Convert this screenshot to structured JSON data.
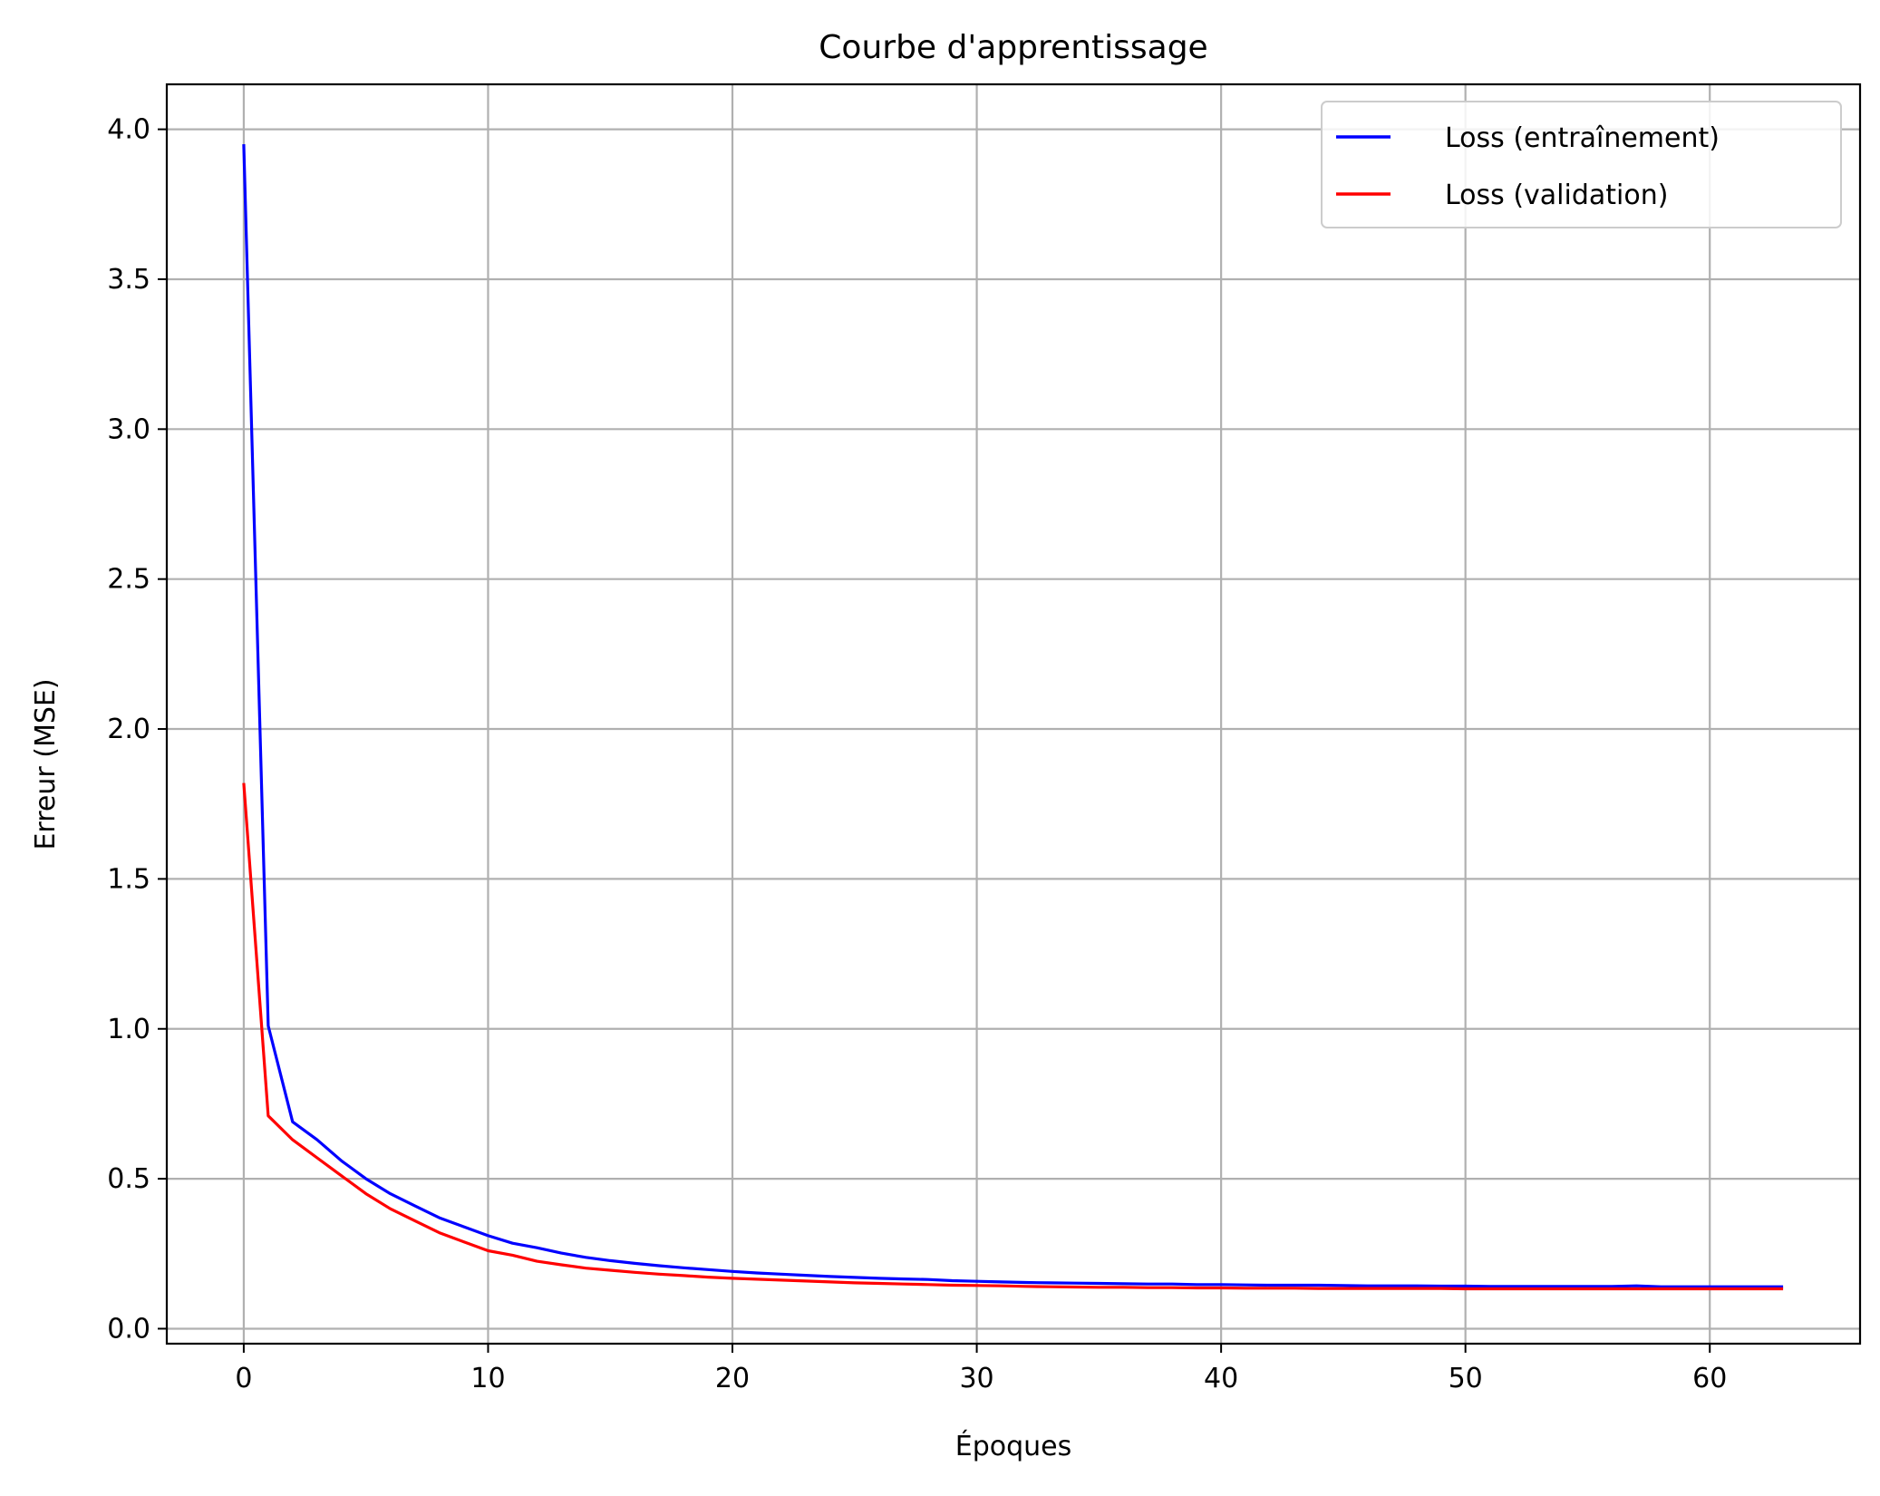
{
  "chart_data": {
    "type": "line",
    "title": "Courbe d'apprentissage",
    "xlabel": "Époques",
    "ylabel": "Erreur (MSE)",
    "xlim": [
      -3.15,
      66.15
    ],
    "ylim": [
      -0.05,
      4.15
    ],
    "grid": true,
    "legend_position": "top-right",
    "x_ticks": [
      0,
      10,
      20,
      30,
      40,
      50,
      60
    ],
    "x_tick_labels": [
      "0",
      "10",
      "20",
      "30",
      "40",
      "50",
      "60"
    ],
    "y_ticks": [
      0.0,
      0.5,
      1.0,
      1.5,
      2.0,
      2.5,
      3.0,
      3.5,
      4.0
    ],
    "y_tick_labels": [
      "0.0",
      "0.5",
      "1.0",
      "1.5",
      "2.0",
      "2.5",
      "3.0",
      "3.5",
      "4.0"
    ],
    "series": [
      {
        "name": "Loss (entraînement)",
        "color": "#0000ff",
        "values": [
          3.95,
          1.01,
          0.69,
          0.63,
          0.56,
          0.5,
          0.45,
          0.41,
          0.37,
          0.34,
          0.31,
          0.285,
          0.27,
          0.252,
          0.238,
          0.227,
          0.218,
          0.21,
          0.203,
          0.197,
          0.191,
          0.186,
          0.182,
          0.178,
          0.174,
          0.171,
          0.168,
          0.166,
          0.164,
          0.16,
          0.158,
          0.156,
          0.154,
          0.153,
          0.152,
          0.151,
          0.15,
          0.149,
          0.149,
          0.147,
          0.147,
          0.146,
          0.145,
          0.145,
          0.145,
          0.144,
          0.143,
          0.143,
          0.143,
          0.142,
          0.142,
          0.141,
          0.141,
          0.141,
          0.141,
          0.141,
          0.141,
          0.143,
          0.14,
          0.14,
          0.14,
          0.14,
          0.14,
          0.14
        ]
      },
      {
        "name": "Loss (validation)",
        "color": "#ff0000",
        "values": [
          1.82,
          0.71,
          0.63,
          0.57,
          0.51,
          0.45,
          0.4,
          0.36,
          0.32,
          0.29,
          0.26,
          0.245,
          0.225,
          0.213,
          0.202,
          0.195,
          0.188,
          0.182,
          0.177,
          0.172,
          0.168,
          0.165,
          0.162,
          0.159,
          0.156,
          0.153,
          0.151,
          0.149,
          0.147,
          0.145,
          0.144,
          0.143,
          0.141,
          0.14,
          0.139,
          0.138,
          0.138,
          0.137,
          0.137,
          0.136,
          0.136,
          0.135,
          0.135,
          0.135,
          0.134,
          0.134,
          0.134,
          0.134,
          0.134,
          0.134,
          0.133,
          0.133,
          0.133,
          0.133,
          0.133,
          0.133,
          0.133,
          0.133,
          0.133,
          0.133,
          0.133,
          0.133,
          0.133,
          0.133
        ]
      }
    ]
  }
}
